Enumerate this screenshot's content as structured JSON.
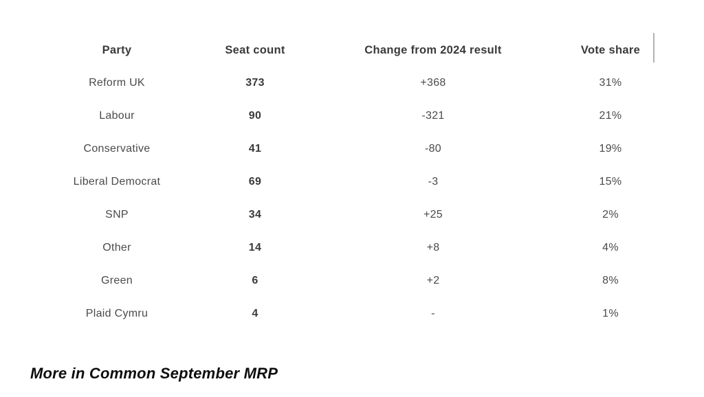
{
  "table": {
    "columns": [
      {
        "label": "Party"
      },
      {
        "label": "Seat count"
      },
      {
        "label": "Change from 2024 result"
      },
      {
        "label": "Vote share"
      }
    ],
    "rows": [
      {
        "party": "Reform UK",
        "seats": "373",
        "change": "+368",
        "vote_share": "31%"
      },
      {
        "party": "Labour",
        "seats": "90",
        "change": "-321",
        "vote_share": "21%"
      },
      {
        "party": "Conservative",
        "seats": "41",
        "change": "-80",
        "vote_share": "19%"
      },
      {
        "party": "Liberal Democrat",
        "seats": "69",
        "change": "-3",
        "vote_share": "15%"
      },
      {
        "party": "SNP",
        "seats": "34",
        "change": "+25",
        "vote_share": "2%"
      },
      {
        "party": "Other",
        "seats": "14",
        "change": "+8",
        "vote_share": "4%"
      },
      {
        "party": "Green",
        "seats": "6",
        "change": "+2",
        "vote_share": "8%"
      },
      {
        "party": "Plaid Cymru",
        "seats": "4",
        "change": "-",
        "vote_share": "1%"
      }
    ]
  },
  "footer": {
    "source_label": "More in Common September MRP"
  },
  "colors": {
    "header_text": "#3a3a3a",
    "body_text": "#4a4a4a",
    "divider": "#b3b3b3",
    "background": "#ffffff"
  },
  "chart_data": {
    "type": "table",
    "title": "",
    "columns": [
      "Party",
      "Seat count",
      "Change from 2024 result",
      "Vote share"
    ],
    "rows": [
      [
        "Reform UK",
        373,
        "+368",
        "31%"
      ],
      [
        "Labour",
        90,
        "-321",
        "21%"
      ],
      [
        "Conservative",
        41,
        "-80",
        "19%"
      ],
      [
        "Liberal Democrat",
        69,
        "-3",
        "15%"
      ],
      [
        "SNP",
        34,
        "+25",
        "2%"
      ],
      [
        "Other",
        14,
        "+8",
        "4%"
      ],
      [
        "Green",
        6,
        "+2",
        "8%"
      ],
      [
        "Plaid Cymru",
        4,
        "-",
        "1%"
      ]
    ],
    "source": "More in Common September MRP",
    "layout_hints": {
      "grid": "off",
      "seat_count_bold": true,
      "all_columns_centered": true
    }
  }
}
